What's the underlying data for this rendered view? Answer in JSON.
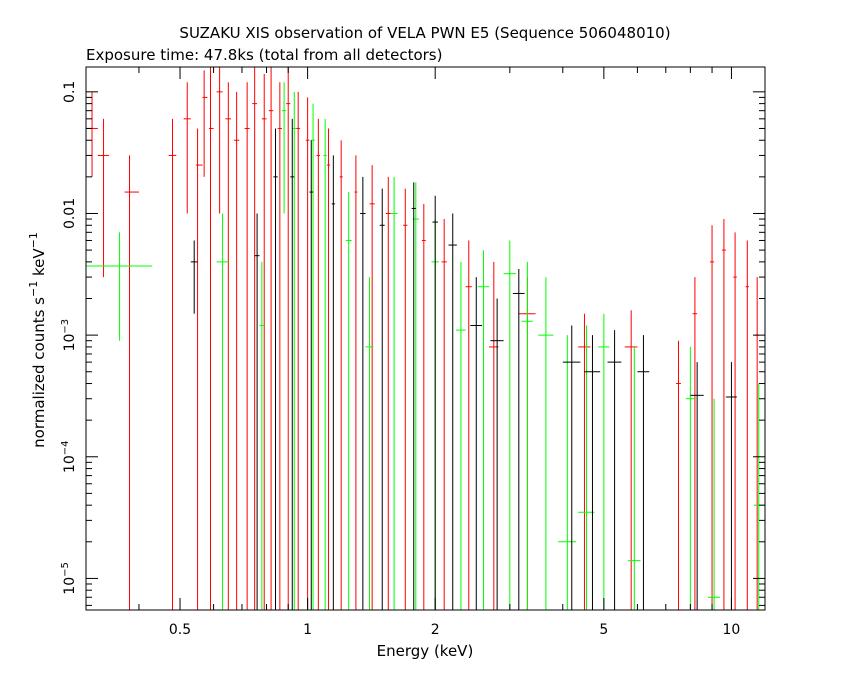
{
  "chart_data": {
    "type": "scatter",
    "title": "SUZAKU XIS observation of VELA PWN E5 (Sequence 506048010)",
    "subtitle": "Exposure time: 47.8ks (total from all detectors)",
    "xlabel": "Energy (keV)",
    "ylabel": {
      "main": "normalized counts s",
      "sup1": "−1",
      "mid": " keV",
      "sup2": "−1"
    },
    "x_scale": "log",
    "y_scale": "log",
    "xlim": [
      0.3,
      12
    ],
    "ylim": [
      5.5e-06,
      0.16
    ],
    "x_ticks": [
      {
        "value": 0.5,
        "label": "0.5"
      },
      {
        "value": 1,
        "label": "1"
      },
      {
        "value": 2,
        "label": "2"
      },
      {
        "value": 5,
        "label": "5"
      },
      {
        "value": 10,
        "label": "10"
      }
    ],
    "y_ticks": [
      {
        "value": 1e-05,
        "base": "10",
        "exp": "−5"
      },
      {
        "value": 0.0001,
        "base": "10",
        "exp": "−4"
      },
      {
        "value": 0.001,
        "base": "10",
        "exp": "−3"
      },
      {
        "value": 0.01,
        "plain": "0.01"
      },
      {
        "value": 0.1,
        "plain": "0.1"
      }
    ],
    "series": [
      {
        "color": "#ff0000",
        "points": [
          {
            "x": 0.31,
            "xlo": 0.3,
            "xhi": 0.32,
            "y": 0.05,
            "ylo": 0.02,
            "yhi": 0.1
          },
          {
            "x": 0.33,
            "xlo": 0.32,
            "xhi": 0.34,
            "y": 0.03,
            "ylo": 0.003,
            "yhi": 0.06
          },
          {
            "x": 0.38,
            "xlo": 0.37,
            "xhi": 0.4,
            "y": 0.015,
            "ylo": 5.5e-06,
            "yhi": 0.03
          },
          {
            "x": 0.48,
            "xlo": 0.47,
            "xhi": 0.49,
            "y": 0.03,
            "ylo": 5.5e-06,
            "yhi": 0.06
          },
          {
            "x": 0.52,
            "xlo": 0.51,
            "xhi": 0.53,
            "y": 0.06,
            "ylo": 0.01,
            "yhi": 0.12
          },
          {
            "x": 0.55,
            "xlo": 0.545,
            "xhi": 0.565,
            "y": 0.025,
            "ylo": 5.5e-06,
            "yhi": 0.05
          },
          {
            "x": 0.57,
            "xlo": 0.565,
            "xhi": 0.58,
            "y": 0.09,
            "ylo": 0.02,
            "yhi": 0.15
          },
          {
            "x": 0.59,
            "xlo": 0.585,
            "xhi": 0.6,
            "y": 0.05,
            "ylo": 5.5e-06,
            "yhi": 0.16
          },
          {
            "x": 0.62,
            "xlo": 0.61,
            "xhi": 0.63,
            "y": 0.1,
            "ylo": 0.01,
            "yhi": 0.16
          },
          {
            "x": 0.65,
            "xlo": 0.64,
            "xhi": 0.66,
            "y": 0.06,
            "ylo": 5.5e-06,
            "yhi": 0.12
          },
          {
            "x": 0.68,
            "xlo": 0.67,
            "xhi": 0.69,
            "y": 0.04,
            "ylo": 5.5e-06,
            "yhi": 0.1
          },
          {
            "x": 0.72,
            "xlo": 0.71,
            "xhi": 0.73,
            "y": 0.05,
            "ylo": 5.5e-06,
            "yhi": 0.12
          },
          {
            "x": 0.75,
            "xlo": 0.74,
            "xhi": 0.76,
            "y": 0.08,
            "ylo": 5.5e-06,
            "yhi": 0.16
          },
          {
            "x": 0.79,
            "xlo": 0.78,
            "xhi": 0.8,
            "y": 0.06,
            "ylo": 5.5e-06,
            "yhi": 0.14
          },
          {
            "x": 0.82,
            "xlo": 0.81,
            "xhi": 0.83,
            "y": 0.07,
            "ylo": 5.5e-06,
            "yhi": 0.16
          },
          {
            "x": 0.86,
            "xlo": 0.85,
            "xhi": 0.87,
            "y": 0.05,
            "ylo": 5.5e-06,
            "yhi": 0.12
          },
          {
            "x": 0.9,
            "xlo": 0.89,
            "xhi": 0.91,
            "y": 0.08,
            "ylo": 5.5e-06,
            "yhi": 0.16
          },
          {
            "x": 0.95,
            "xlo": 0.94,
            "xhi": 0.96,
            "y": 0.05,
            "ylo": 5.5e-06,
            "yhi": 0.1
          },
          {
            "x": 1.0,
            "xlo": 0.99,
            "xhi": 1.01,
            "y": 0.04,
            "ylo": 5.5e-06,
            "yhi": 0.09
          },
          {
            "x": 1.06,
            "xlo": 1.05,
            "xhi": 1.07,
            "y": 0.03,
            "ylo": 5.5e-06,
            "yhi": 0.06
          },
          {
            "x": 1.12,
            "xlo": 1.11,
            "xhi": 1.13,
            "y": 0.025,
            "ylo": 5.5e-06,
            "yhi": 0.05
          },
          {
            "x": 1.2,
            "xlo": 1.19,
            "xhi": 1.21,
            "y": 0.02,
            "ylo": 5.5e-06,
            "yhi": 0.04
          },
          {
            "x": 1.3,
            "xlo": 1.29,
            "xhi": 1.31,
            "y": 0.015,
            "ylo": 5.5e-06,
            "yhi": 0.03
          },
          {
            "x": 1.42,
            "xlo": 1.4,
            "xhi": 1.44,
            "y": 0.012,
            "ylo": 5.5e-06,
            "yhi": 0.025
          },
          {
            "x": 1.55,
            "xlo": 1.53,
            "xhi": 1.57,
            "y": 0.01,
            "ylo": 5.5e-06,
            "yhi": 0.02
          },
          {
            "x": 1.7,
            "xlo": 1.68,
            "xhi": 1.72,
            "y": 0.008,
            "ylo": 5.5e-06,
            "yhi": 0.016
          },
          {
            "x": 1.88,
            "xlo": 1.86,
            "xhi": 1.9,
            "y": 0.006,
            "ylo": 5.5e-06,
            "yhi": 0.012
          },
          {
            "x": 2.1,
            "xlo": 2.07,
            "xhi": 2.13,
            "y": 0.004,
            "ylo": 5.5e-06,
            "yhi": 0.009
          },
          {
            "x": 2.4,
            "xlo": 2.36,
            "xhi": 2.44,
            "y": 0.0025,
            "ylo": 5.5e-06,
            "yhi": 0.006
          },
          {
            "x": 2.75,
            "xlo": 2.68,
            "xhi": 2.82,
            "y": 0.0008,
            "ylo": 5.5e-06,
            "yhi": 0.004
          },
          {
            "x": 3.3,
            "xlo": 3.15,
            "xhi": 3.45,
            "y": 0.0015,
            "ylo": 5.5e-06,
            "yhi": 0.003
          },
          {
            "x": 4.5,
            "xlo": 4.35,
            "xhi": 4.65,
            "y": 0.0008,
            "ylo": 5.5e-06,
            "yhi": 0.0015
          },
          {
            "x": 5.8,
            "xlo": 5.6,
            "xhi": 6.0,
            "y": 0.0008,
            "ylo": 5.5e-06,
            "yhi": 0.0016
          },
          {
            "x": 7.5,
            "xlo": 7.4,
            "xhi": 7.6,
            "y": 0.0004,
            "ylo": 5.5e-06,
            "yhi": 0.0009
          },
          {
            "x": 8.2,
            "xlo": 8.1,
            "xhi": 8.3,
            "y": 0.0015,
            "ylo": 5.5e-06,
            "yhi": 0.003
          },
          {
            "x": 9.0,
            "xlo": 8.9,
            "xhi": 9.1,
            "y": 0.004,
            "ylo": 5.5e-06,
            "yhi": 0.008
          },
          {
            "x": 9.6,
            "xlo": 9.5,
            "xhi": 9.7,
            "y": 0.005,
            "ylo": 5.5e-06,
            "yhi": 0.009
          },
          {
            "x": 10.2,
            "xlo": 10.1,
            "xhi": 10.3,
            "y": 0.003,
            "ylo": 5.5e-06,
            "yhi": 0.007
          },
          {
            "x": 10.9,
            "xlo": 10.8,
            "xhi": 11.0,
            "y": 0.0025,
            "ylo": 5.5e-06,
            "yhi": 0.006
          },
          {
            "x": 11.5,
            "xlo": 11.4,
            "xhi": 11.6,
            "y": 0.001,
            "ylo": 5.5e-06,
            "yhi": 0.003
          }
        ]
      },
      {
        "color": "#00ff00",
        "points": [
          {
            "x": 0.36,
            "xlo": 0.3,
            "xhi": 0.43,
            "y": 0.0037,
            "ylo": 0.0009,
            "yhi": 0.007
          },
          {
            "x": 0.63,
            "xlo": 0.61,
            "xhi": 0.65,
            "y": 0.004,
            "ylo": 5.5e-06,
            "yhi": 0.01
          },
          {
            "x": 0.78,
            "xlo": 0.77,
            "xhi": 0.79,
            "y": 0.0012,
            "ylo": 5.5e-06,
            "yhi": 0.004
          },
          {
            "x": 0.88,
            "xlo": 0.87,
            "xhi": 0.89,
            "y": 0.07,
            "ylo": 0.01,
            "yhi": 0.12
          },
          {
            "x": 0.93,
            "xlo": 0.92,
            "xhi": 0.94,
            "y": 0.05,
            "ylo": 5.5e-06,
            "yhi": 0.1
          },
          {
            "x": 1.03,
            "xlo": 1.02,
            "xhi": 1.04,
            "y": 0.04,
            "ylo": 5.5e-06,
            "yhi": 0.08
          },
          {
            "x": 1.1,
            "xlo": 1.09,
            "xhi": 1.11,
            "y": 0.03,
            "ylo": 5.5e-06,
            "yhi": 0.06
          },
          {
            "x": 1.25,
            "xlo": 1.23,
            "xhi": 1.27,
            "y": 0.006,
            "ylo": 5.5e-06,
            "yhi": 0.015
          },
          {
            "x": 1.4,
            "xlo": 1.37,
            "xhi": 1.43,
            "y": 0.0008,
            "ylo": 5.5e-06,
            "yhi": 0.003
          },
          {
            "x": 1.6,
            "xlo": 1.57,
            "xhi": 1.63,
            "y": 0.01,
            "ylo": 5.5e-06,
            "yhi": 0.02
          },
          {
            "x": 1.8,
            "xlo": 1.77,
            "xhi": 1.83,
            "y": 0.009,
            "ylo": 5.5e-06,
            "yhi": 0.018
          },
          {
            "x": 2.0,
            "xlo": 1.96,
            "xhi": 2.04,
            "y": 0.004,
            "ylo": 5.5e-06,
            "yhi": 0.009
          },
          {
            "x": 2.3,
            "xlo": 2.24,
            "xhi": 2.36,
            "y": 0.0011,
            "ylo": 5.5e-06,
            "yhi": 0.004
          },
          {
            "x": 2.6,
            "xlo": 2.52,
            "xhi": 2.68,
            "y": 0.0025,
            "ylo": 5.5e-06,
            "yhi": 0.005
          },
          {
            "x": 3.0,
            "xlo": 2.9,
            "xhi": 3.1,
            "y": 0.0032,
            "ylo": 5.5e-06,
            "yhi": 0.006
          },
          {
            "x": 3.3,
            "xlo": 3.2,
            "xhi": 3.4,
            "y": 0.0013,
            "ylo": 5.5e-06,
            "yhi": 0.004
          },
          {
            "x": 3.65,
            "xlo": 3.5,
            "xhi": 3.8,
            "y": 0.001,
            "ylo": 5.5e-06,
            "yhi": 0.003
          },
          {
            "x": 4.1,
            "xlo": 3.9,
            "xhi": 4.3,
            "y": 2e-05,
            "ylo": 5.5e-06,
            "yhi": 0.001
          },
          {
            "x": 4.55,
            "xlo": 4.35,
            "xhi": 4.75,
            "y": 3.5e-05,
            "ylo": 5.5e-06,
            "yhi": 0.0012
          },
          {
            "x": 5.0,
            "xlo": 4.85,
            "xhi": 5.15,
            "y": 0.0008,
            "ylo": 5.5e-06,
            "yhi": 0.0015
          },
          {
            "x": 5.9,
            "xlo": 5.7,
            "xhi": 6.1,
            "y": 1.4e-05,
            "ylo": 5.5e-06,
            "yhi": 0.0008
          },
          {
            "x": 8.0,
            "xlo": 7.8,
            "xhi": 8.2,
            "y": 0.0003,
            "ylo": 5.5e-06,
            "yhi": 0.0008
          },
          {
            "x": 9.1,
            "xlo": 8.8,
            "xhi": 9.4,
            "y": 7e-06,
            "ylo": 5.5e-06,
            "yhi": 0.0003
          },
          {
            "x": 11.6,
            "xlo": 11.3,
            "xhi": 11.95,
            "y": 4e-05,
            "ylo": 5.5e-06,
            "yhi": 0.0004
          }
        ]
      },
      {
        "color": "#000000",
        "points": [
          {
            "x": 0.54,
            "xlo": 0.53,
            "xhi": 0.55,
            "y": 0.004,
            "ylo": 0.0015,
            "yhi": 0.006
          },
          {
            "x": 0.76,
            "xlo": 0.75,
            "xhi": 0.77,
            "y": 0.0045,
            "ylo": 5.5e-06,
            "yhi": 0.01
          },
          {
            "x": 0.84,
            "xlo": 0.83,
            "xhi": 0.85,
            "y": 0.02,
            "ylo": 5.5e-06,
            "yhi": 0.05
          },
          {
            "x": 0.92,
            "xlo": 0.91,
            "xhi": 0.93,
            "y": 0.02,
            "ylo": 5.5e-06,
            "yhi": 0.06
          },
          {
            "x": 1.02,
            "xlo": 1.01,
            "xhi": 1.03,
            "y": 0.015,
            "ylo": 5.5e-06,
            "yhi": 0.04
          },
          {
            "x": 1.15,
            "xlo": 1.14,
            "xhi": 1.16,
            "y": 0.012,
            "ylo": 5.5e-06,
            "yhi": 0.03
          },
          {
            "x": 1.35,
            "xlo": 1.33,
            "xhi": 1.37,
            "y": 0.01,
            "ylo": 5.5e-06,
            "yhi": 0.02
          },
          {
            "x": 1.5,
            "xlo": 1.48,
            "xhi": 1.52,
            "y": 0.008,
            "ylo": 5.5e-06,
            "yhi": 0.016
          },
          {
            "x": 1.78,
            "xlo": 1.76,
            "xhi": 1.8,
            "y": 0.011,
            "ylo": 5.5e-06,
            "yhi": 0.018
          },
          {
            "x": 2.0,
            "xlo": 1.97,
            "xhi": 2.03,
            "y": 0.0085,
            "ylo": 5.5e-06,
            "yhi": 0.014
          },
          {
            "x": 2.2,
            "xlo": 2.15,
            "xhi": 2.25,
            "y": 0.0055,
            "ylo": 5.5e-06,
            "yhi": 0.01
          },
          {
            "x": 2.5,
            "xlo": 2.42,
            "xhi": 2.58,
            "y": 0.0012,
            "ylo": 5.5e-06,
            "yhi": 0.003
          },
          {
            "x": 2.8,
            "xlo": 2.7,
            "xhi": 2.9,
            "y": 0.0009,
            "ylo": 5.5e-06,
            "yhi": 0.002
          },
          {
            "x": 3.15,
            "xlo": 3.05,
            "xhi": 3.25,
            "y": 0.0022,
            "ylo": 5.5e-06,
            "yhi": 0.0035
          },
          {
            "x": 4.2,
            "xlo": 4.0,
            "xhi": 4.4,
            "y": 0.0006,
            "ylo": 5.5e-06,
            "yhi": 0.0012
          },
          {
            "x": 4.7,
            "xlo": 4.5,
            "xhi": 4.9,
            "y": 0.0005,
            "ylo": 5.5e-06,
            "yhi": 0.001
          },
          {
            "x": 5.3,
            "xlo": 5.1,
            "xhi": 5.5,
            "y": 0.0006,
            "ylo": 5.5e-06,
            "yhi": 0.0011
          },
          {
            "x": 6.2,
            "xlo": 6.0,
            "xhi": 6.4,
            "y": 0.0005,
            "ylo": 5.5e-06,
            "yhi": 0.001
          },
          {
            "x": 8.3,
            "xlo": 8.0,
            "xhi": 8.6,
            "y": 0.00032,
            "ylo": 5.5e-06,
            "yhi": 0.0006
          },
          {
            "x": 10.0,
            "xlo": 9.7,
            "xhi": 10.3,
            "y": 0.00031,
            "ylo": 5.5e-06,
            "yhi": 0.0006
          }
        ]
      }
    ],
    "grid": false,
    "legend": "none"
  }
}
